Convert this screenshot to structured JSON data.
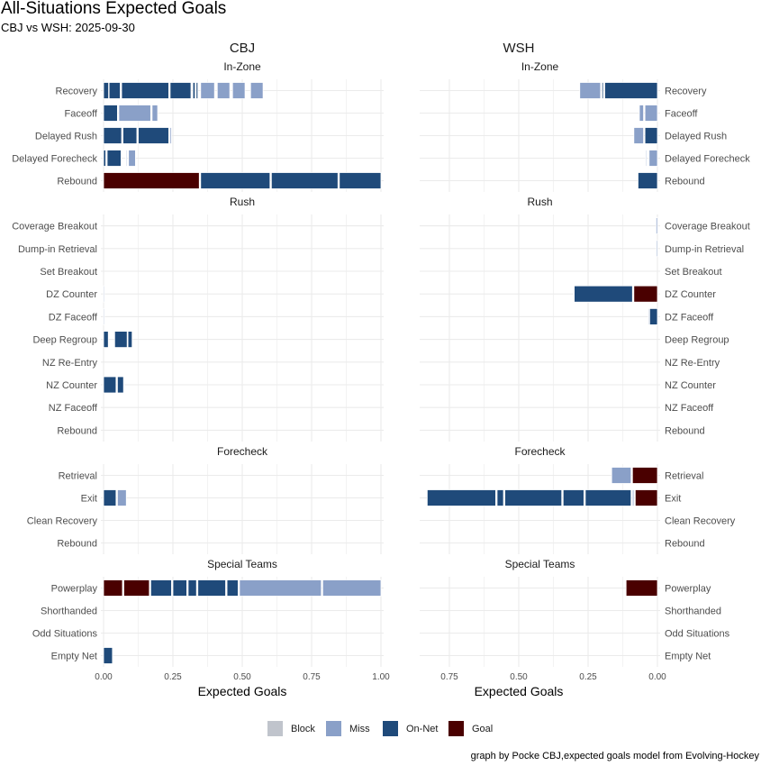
{
  "chart_data": {
    "type": "bar",
    "title": "All-Situations Expected Goals",
    "subtitle": "CBJ vs WSH: 2025-09-30",
    "caption": "graph by Pocke CBJ,expected goals model from Evolving-Hockey",
    "xlabel": "Expected Goals",
    "teams": [
      "CBJ",
      "WSH"
    ],
    "left_ticks": [
      "0.00",
      "0.25",
      "0.50",
      "0.75",
      "1.00"
    ],
    "right_ticks": [
      "0.75",
      "0.50",
      "0.25",
      "0.00"
    ],
    "left_xlim": [
      -0.01,
      1.01
    ],
    "right_xlim": [
      0.855,
      -0.01
    ],
    "legend": [
      {
        "label": "Block",
        "type": "b"
      },
      {
        "label": "Miss",
        "type": "m"
      },
      {
        "label": "On-Net",
        "type": "n"
      },
      {
        "label": "Goal",
        "type": "g"
      }
    ],
    "colors": {
      "b": "#c0c4cc",
      "m": "#8aa0c8",
      "n": "#1f4a7a",
      "g": "#4a0000"
    },
    "facets": [
      {
        "name": "In-Zone",
        "categories": [
          "Recovery",
          "Faceoff",
          "Delayed Rush",
          "Delayed Forecheck",
          "Rebound"
        ],
        "CBJ": [
          [
            [
              "n",
              0,
              0.018
            ],
            [
              "n",
              0.02,
              0.06
            ],
            [
              "n",
              0.065,
              0.235
            ],
            [
              "n",
              0.24,
              0.315
            ],
            [
              "n",
              0.322,
              0.33
            ],
            [
              "n",
              0.334,
              0.34
            ],
            [
              "m",
              0.35,
              0.4
            ],
            [
              "m",
              0.41,
              0.455
            ],
            [
              "m",
              0.465,
              0.51
            ],
            [
              "m",
              0.53,
              0.575
            ]
          ],
          [
            [
              "n",
              0,
              0.05
            ],
            [
              "m",
              0.055,
              0.17
            ],
            [
              "m",
              0.175,
              0.195
            ]
          ],
          [
            [
              "n",
              0,
              0.065
            ],
            [
              "n",
              0.07,
              0.12
            ],
            [
              "n",
              0.125,
              0.235
            ],
            [
              "m",
              0.24,
              0.245
            ]
          ],
          [
            [
              "n",
              0,
              0.008
            ],
            [
              "n",
              0.013,
              0.063
            ],
            [
              "m",
              0.08,
              0.083
            ],
            [
              "m",
              0.09,
              0.115
            ]
          ],
          [
            [
              "g",
              0,
              0.345
            ],
            [
              "n",
              0.35,
              0.6
            ],
            [
              "n",
              0.605,
              0.845
            ],
            [
              "n",
              0.85,
              1.0
            ]
          ]
        ],
        "WSH": [
          [
            [
              "n",
              0,
              0.19
            ],
            [
              "n",
              0.195,
              0.2
            ],
            [
              "m",
              0.205,
              0.28
            ]
          ],
          [
            [
              "m",
              0,
              0.045
            ],
            [
              "m",
              0.05,
              0.065
            ]
          ],
          [
            [
              "n",
              0,
              0.045
            ],
            [
              "m",
              0.05,
              0.085
            ]
          ],
          [
            [
              "m",
              0,
              0.03
            ],
            [
              "m",
              0.04,
              0.043
            ]
          ],
          [
            [
              "n",
              0,
              0.07
            ]
          ]
        ]
      },
      {
        "name": "Rush",
        "categories": [
          "Coverage Breakout",
          "Dump-in Retrieval",
          "Set Breakout",
          "DZ Counter",
          "DZ Faceoff",
          "Deep Regroup",
          "NZ Re-Entry",
          "NZ Counter",
          "NZ Faceoff",
          "Rebound"
        ],
        "CBJ": [
          [],
          [],
          [],
          [
            [
              "m",
              0,
              0.003
            ]
          ],
          [
            [
              "m",
              0,
              0.002
            ]
          ],
          [
            [
              "n",
              0,
              0.017
            ],
            [
              "n",
              0.04,
              0.085
            ],
            [
              "n",
              0.088,
              0.103
            ]
          ],
          [],
          [
            [
              "n",
              0,
              0.045
            ],
            [
              "n",
              0.05,
              0.072
            ]
          ],
          [],
          []
        ],
        "WSH": [
          [
            [
              "m",
              0,
              0.005
            ]
          ],
          [
            [
              "m",
              0,
              0.004
            ]
          ],
          [],
          [
            [
              "g",
              0,
              0.085
            ],
            [
              "n",
              0.09,
              0.3
            ]
          ],
          [
            [
              "n",
              0,
              0.028
            ],
            [
              "m",
              0.03,
              0.033
            ]
          ],
          [],
          [],
          [],
          [],
          []
        ]
      },
      {
        "name": "Forecheck",
        "categories": [
          "Retrieval",
          "Exit",
          "Clean Recovery",
          "Rebound"
        ],
        "CBJ": [
          [],
          [
            [
              "n",
              0,
              0.045
            ],
            [
              "m",
              0.05,
              0.082
            ]
          ],
          [],
          []
        ],
        "WSH": [
          [
            [
              "g",
              0,
              0.09
            ],
            [
              "m",
              0.095,
              0.165
            ]
          ],
          [
            [
              "g",
              0,
              0.08
            ],
            [
              "m",
              0.085,
              0.09
            ],
            [
              "n",
              0.095,
              0.26
            ],
            [
              "n",
              0.265,
              0.34
            ],
            [
              "n",
              0.345,
              0.55
            ],
            [
              "n",
              0.555,
              0.578
            ],
            [
              "n",
              0.583,
              0.83
            ]
          ],
          [],
          []
        ]
      },
      {
        "name": "Special Teams",
        "categories": [
          "Powerplay",
          "Shorthanded",
          "Odd Situations",
          "Empty Net"
        ],
        "CBJ": [
          [
            [
              "g",
              0,
              0.068
            ],
            [
              "g",
              0.073,
              0.165
            ],
            [
              "n",
              0.17,
              0.245
            ],
            [
              "n",
              0.25,
              0.3
            ],
            [
              "n",
              0.305,
              0.335
            ],
            [
              "n",
              0.34,
              0.44
            ],
            [
              "n",
              0.445,
              0.485
            ],
            [
              "m",
              0.49,
              0.785
            ],
            [
              "m",
              0.79,
              1.0
            ]
          ],
          [],
          [],
          [
            [
              "n",
              0,
              0.032
            ]
          ]
        ],
        "WSH": [
          [
            [
              "g",
              0,
              0.113
            ]
          ],
          [],
          [],
          []
        ]
      }
    ]
  }
}
